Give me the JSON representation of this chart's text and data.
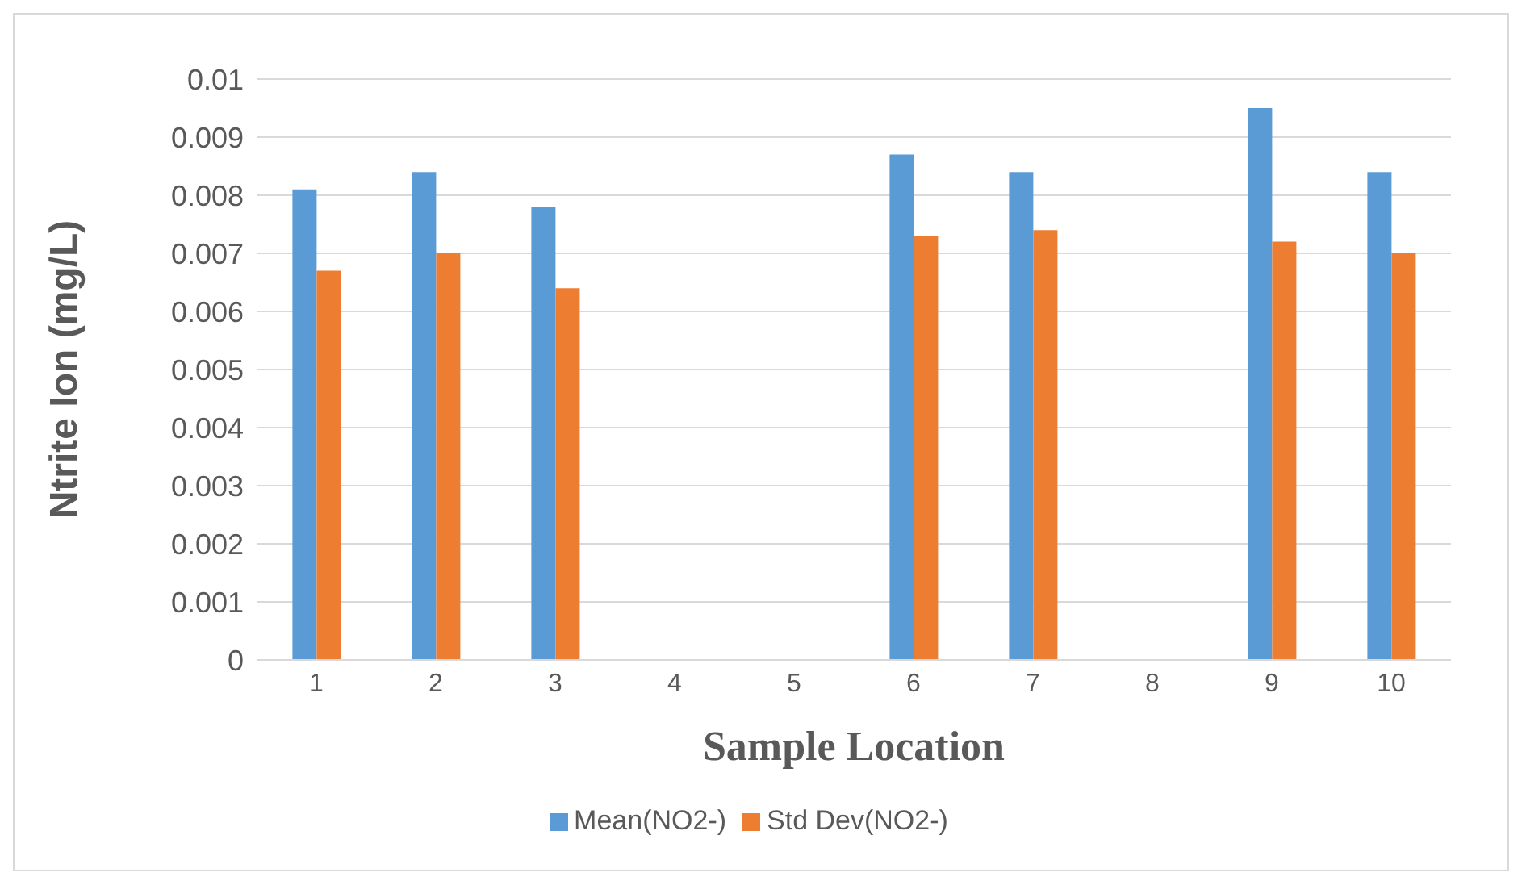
{
  "chart_data": {
    "type": "bar",
    "xlabel": "Sample Location",
    "ylabel": "Ntrite Ion (mg/L)",
    "categories": [
      "1",
      "2",
      "3",
      "4",
      "5",
      "6",
      "7",
      "8",
      "9",
      "10"
    ],
    "series": [
      {
        "name": "Mean(NO2-)",
        "color": "#5b9bd5",
        "values": [
          0.0081,
          0.0084,
          0.0078,
          0,
          0,
          0.0087,
          0.0084,
          0,
          0.0095,
          0.0084
        ]
      },
      {
        "name": "Std Dev(NO2-)",
        "color": "#ed7d31",
        "values": [
          0.0067,
          0.007,
          0.0064,
          0,
          0,
          0.0073,
          0.0074,
          0,
          0.0072,
          0.007
        ]
      }
    ],
    "ylim": [
      0,
      0.01
    ],
    "yticks": [
      0,
      0.001,
      0.002,
      0.003,
      0.004,
      0.005,
      0.006,
      0.007,
      0.008,
      0.009,
      0.01
    ],
    "grid": "y",
    "legend": "bottom"
  }
}
